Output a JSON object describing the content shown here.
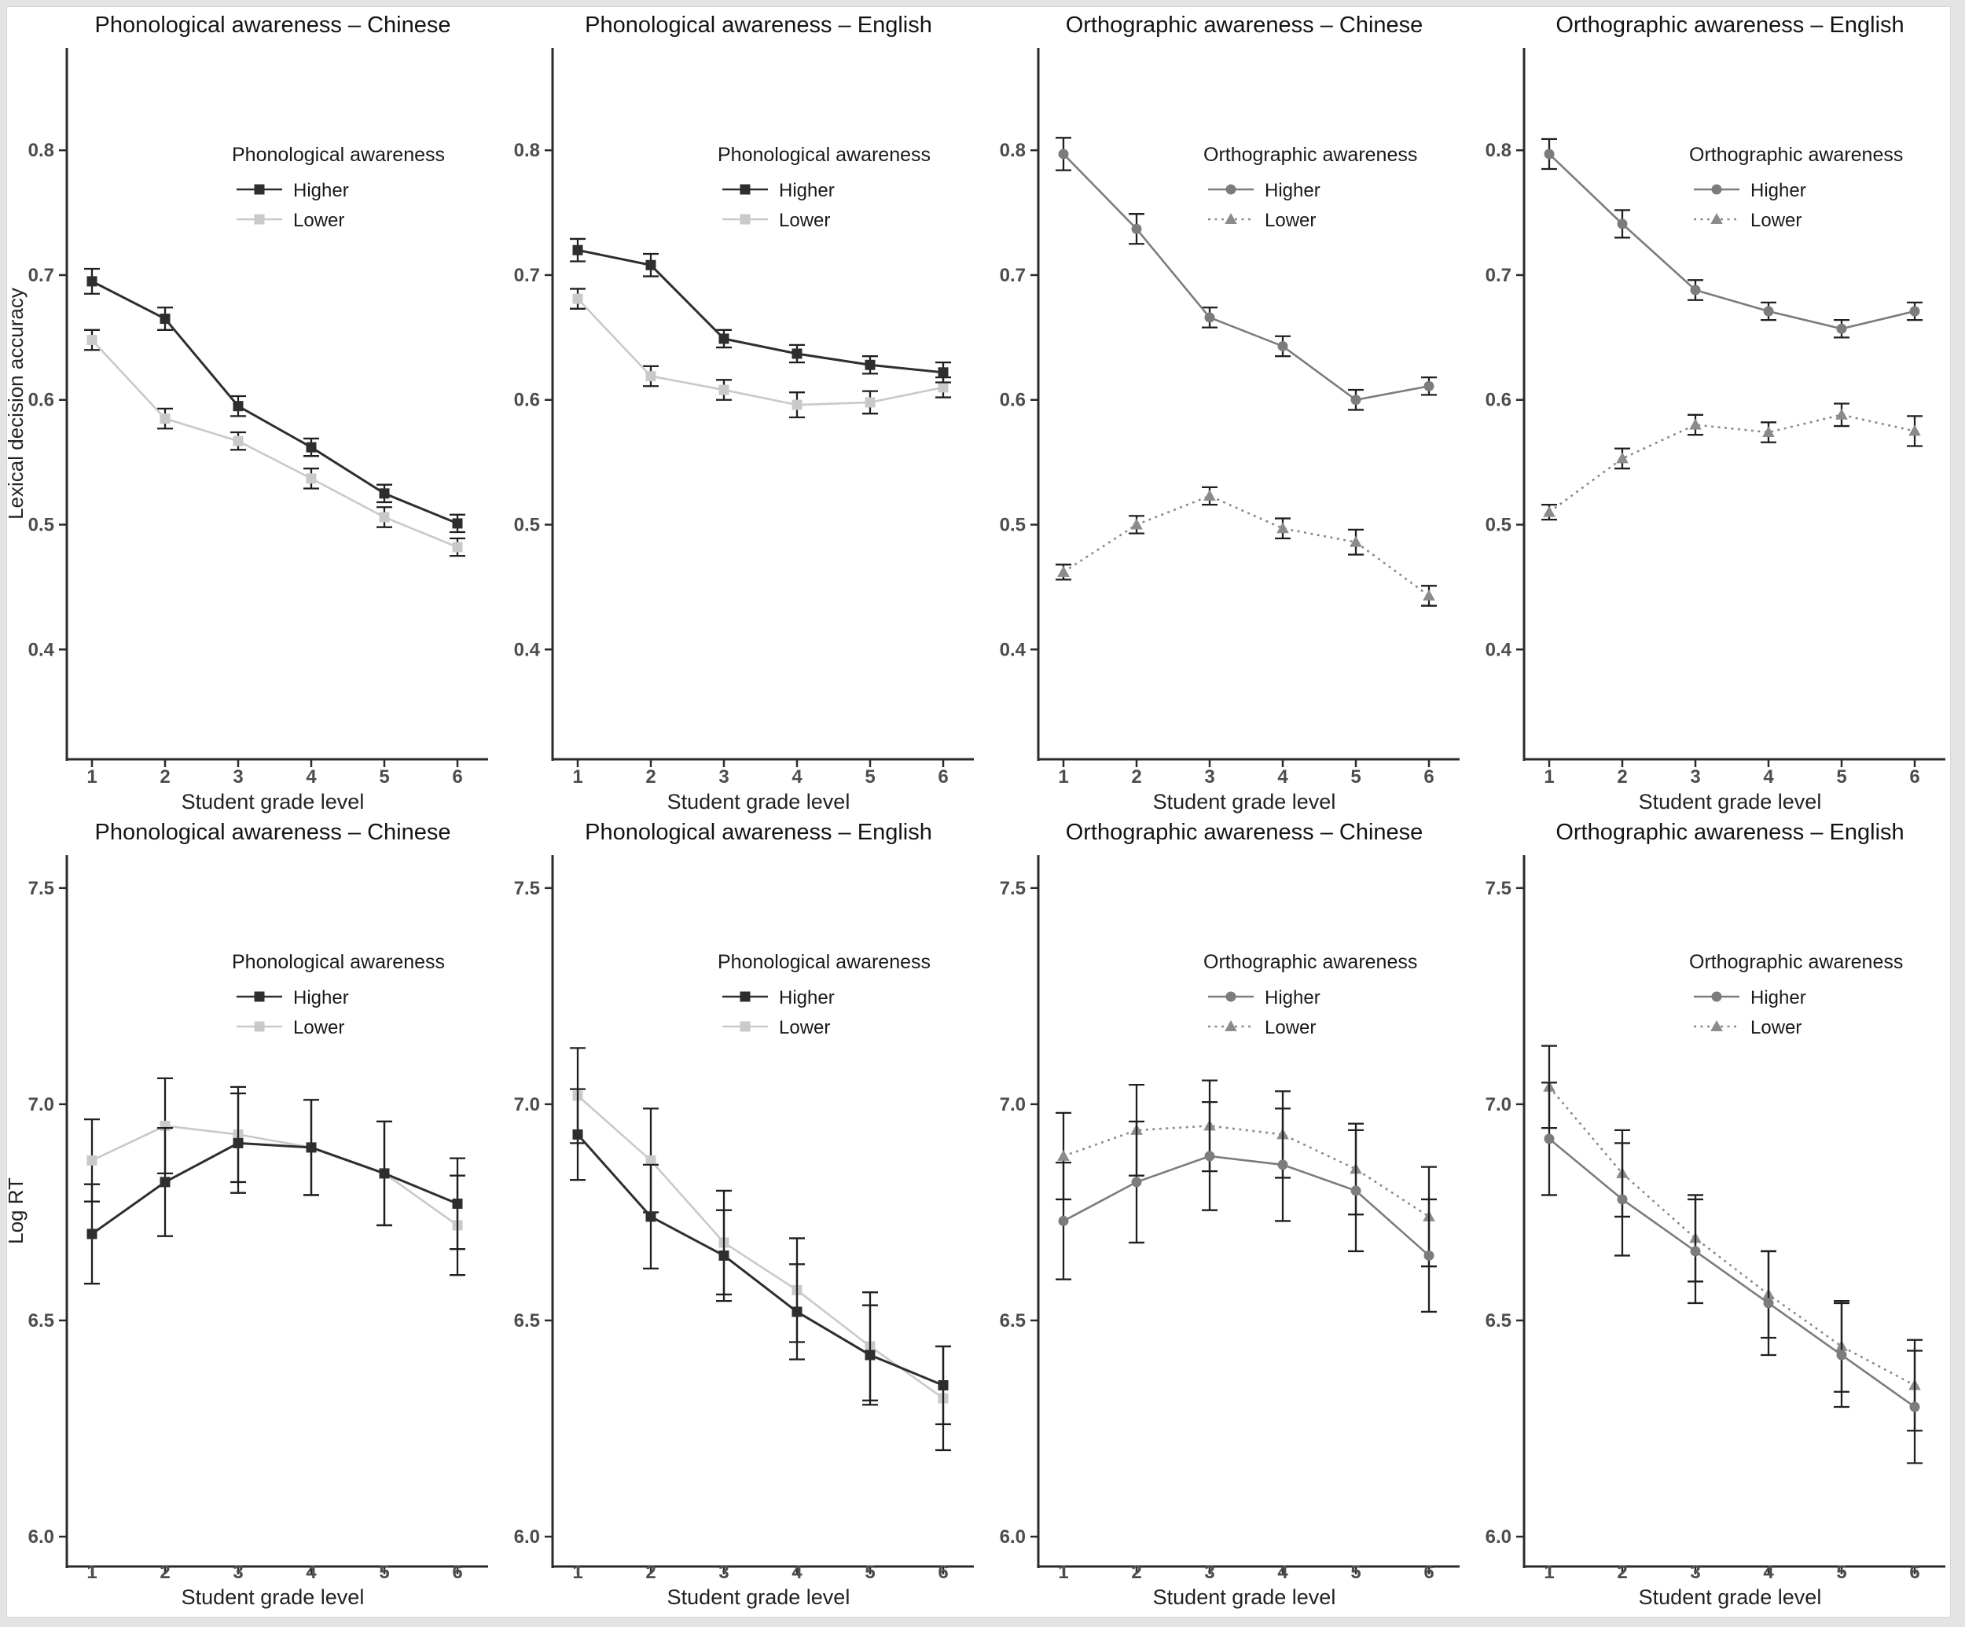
{
  "page": {
    "colors": {
      "page_background": "#e4e4e4",
      "figure_background": "#ffffff",
      "axis": "#2b2b2b",
      "tick_label": "#4d4d4d",
      "title_text": "#141414",
      "error_bar": "#1f1f1f",
      "phonological_higher": "#2e2e2e",
      "phonological_lower": "#c9c9c9",
      "orthographic_higher": "#7c7c7c",
      "orthographic_lower": "#8b8b8b"
    }
  },
  "figure": {
    "x_axis": {
      "label": "Student grade level",
      "tick_labels": [
        "1",
        "2",
        "3",
        "4",
        "5",
        "6"
      ]
    },
    "row_axes": [
      {
        "label": "Lexical decision accuracy",
        "tick_values": [
          0.8,
          0.7,
          0.6,
          0.5,
          0.4
        ],
        "tick_labels": [
          "0.8",
          "0.7",
          "0.6",
          "0.5",
          "0.4"
        ],
        "ylim": [
          0.312,
          0.882
        ]
      },
      {
        "label": "Log RT",
        "tick_values": [
          7.5,
          7.0,
          6.5,
          6.0
        ],
        "tick_labels": [
          "7.5",
          "7.0",
          "6.5",
          "6.0"
        ],
        "ylim": [
          5.931,
          7.576
        ]
      }
    ]
  },
  "chart_data": [
    {
      "type": "line",
      "row": 0,
      "col": 0,
      "title": "Phonological awareness – Chinese",
      "xlabel": "Student grade level",
      "ylabel": "Lexical decision accuracy",
      "x": [
        1,
        2,
        3,
        4,
        5,
        6
      ],
      "legend": {
        "title": "Phonological awareness",
        "position": "upper right"
      },
      "series": [
        {
          "name": "Lower",
          "marker": "square",
          "line_style": "solid",
          "color": "#c9c9c9",
          "values": [
            0.648,
            0.585,
            0.567,
            0.537,
            0.506,
            0.482
          ],
          "errors": [
            0.008,
            0.008,
            0.007,
            0.008,
            0.008,
            0.007
          ]
        },
        {
          "name": "Higher",
          "marker": "square",
          "line_style": "solid",
          "color": "#2e2e2e",
          "values": [
            0.695,
            0.665,
            0.595,
            0.562,
            0.525,
            0.501
          ],
          "errors": [
            0.01,
            0.009,
            0.008,
            0.007,
            0.007,
            0.007
          ]
        }
      ]
    },
    {
      "type": "line",
      "row": 0,
      "col": 1,
      "title": "Phonological awareness – English",
      "xlabel": "Student grade level",
      "ylabel": null,
      "x": [
        1,
        2,
        3,
        4,
        5,
        6
      ],
      "legend": {
        "title": "Phonological awareness",
        "position": "upper right"
      },
      "series": [
        {
          "name": "Lower",
          "marker": "square",
          "line_style": "solid",
          "color": "#c9c9c9",
          "values": [
            0.681,
            0.619,
            0.608,
            0.596,
            0.598,
            0.61
          ],
          "errors": [
            0.008,
            0.008,
            0.008,
            0.01,
            0.009,
            0.008
          ]
        },
        {
          "name": "Higher",
          "marker": "square",
          "line_style": "solid",
          "color": "#2e2e2e",
          "values": [
            0.72,
            0.708,
            0.649,
            0.637,
            0.628,
            0.622
          ],
          "errors": [
            0.009,
            0.009,
            0.007,
            0.007,
            0.007,
            0.008
          ]
        }
      ]
    },
    {
      "type": "line",
      "row": 0,
      "col": 2,
      "title": "Orthographic awareness – Chinese",
      "xlabel": "Student grade level",
      "ylabel": null,
      "x": [
        1,
        2,
        3,
        4,
        5,
        6
      ],
      "legend": {
        "title": "Orthographic awareness",
        "position": "upper right"
      },
      "series": [
        {
          "name": "Lower",
          "marker": "triangle",
          "line_style": "dashed",
          "color": "#8b8b8b",
          "values": [
            0.462,
            0.5,
            0.523,
            0.497,
            0.486,
            0.443
          ],
          "errors": [
            0.006,
            0.007,
            0.007,
            0.008,
            0.01,
            0.008
          ]
        },
        {
          "name": "Higher",
          "marker": "circle",
          "line_style": "solid",
          "color": "#7c7c7c",
          "values": [
            0.797,
            0.737,
            0.666,
            0.643,
            0.6,
            0.611
          ],
          "errors": [
            0.013,
            0.012,
            0.008,
            0.008,
            0.008,
            0.007
          ]
        }
      ]
    },
    {
      "type": "line",
      "row": 0,
      "col": 3,
      "title": "Orthographic awareness – English",
      "xlabel": "Student grade level",
      "ylabel": null,
      "x": [
        1,
        2,
        3,
        4,
        5,
        6
      ],
      "legend": {
        "title": "Orthographic awareness",
        "position": "upper right"
      },
      "series": [
        {
          "name": "Lower",
          "marker": "triangle",
          "line_style": "dashed",
          "color": "#8b8b8b",
          "values": [
            0.51,
            0.553,
            0.58,
            0.574,
            0.588,
            0.575
          ],
          "errors": [
            0.006,
            0.008,
            0.008,
            0.008,
            0.009,
            0.012
          ]
        },
        {
          "name": "Higher",
          "marker": "circle",
          "line_style": "solid",
          "color": "#7c7c7c",
          "values": [
            0.797,
            0.741,
            0.688,
            0.671,
            0.657,
            0.671
          ],
          "errors": [
            0.012,
            0.011,
            0.008,
            0.007,
            0.007,
            0.007
          ]
        }
      ]
    },
    {
      "type": "line",
      "row": 1,
      "col": 0,
      "title": "Phonological awareness – Chinese",
      "xlabel": "Student grade level",
      "ylabel": "Log RT",
      "x": [
        1,
        2,
        3,
        4,
        5,
        6
      ],
      "legend": {
        "title": "Phonological awareness",
        "position": "upper right"
      },
      "series": [
        {
          "name": "Lower",
          "marker": "square",
          "line_style": "solid",
          "color": "#c9c9c9",
          "values": [
            6.87,
            6.95,
            6.93,
            6.9,
            6.84,
            6.72
          ],
          "errors": [
            0.095,
            0.11,
            0.11,
            0.11,
            0.12,
            0.115
          ]
        },
        {
          "name": "Higher",
          "marker": "square",
          "line_style": "solid",
          "color": "#2e2e2e",
          "values": [
            6.7,
            6.82,
            6.91,
            6.9,
            6.84,
            6.77
          ],
          "errors": [
            0.115,
            0.125,
            0.115,
            0.11,
            0.12,
            0.105
          ]
        }
      ]
    },
    {
      "type": "line",
      "row": 1,
      "col": 1,
      "title": "Phonological awareness – English",
      "xlabel": "Student grade level",
      "ylabel": null,
      "x": [
        1,
        2,
        3,
        4,
        5,
        6
      ],
      "legend": {
        "title": "Phonological awareness",
        "position": "upper right"
      },
      "series": [
        {
          "name": "Lower",
          "marker": "square",
          "line_style": "solid",
          "color": "#c9c9c9",
          "values": [
            7.02,
            6.87,
            6.68,
            6.57,
            6.44,
            6.32
          ],
          "errors": [
            0.11,
            0.12,
            0.12,
            0.12,
            0.125,
            0.12
          ]
        },
        {
          "name": "Higher",
          "marker": "square",
          "line_style": "solid",
          "color": "#2e2e2e",
          "values": [
            6.93,
            6.74,
            6.65,
            6.52,
            6.42,
            6.35
          ],
          "errors": [
            0.105,
            0.12,
            0.105,
            0.11,
            0.115,
            0.09
          ]
        }
      ]
    },
    {
      "type": "line",
      "row": 1,
      "col": 2,
      "title": "Orthographic awareness – Chinese",
      "xlabel": "Student grade level",
      "ylabel": null,
      "x": [
        1,
        2,
        3,
        4,
        5,
        6
      ],
      "legend": {
        "title": "Orthographic awareness",
        "position": "upper right"
      },
      "series": [
        {
          "name": "Lower",
          "marker": "triangle",
          "line_style": "dashed",
          "color": "#8b8b8b",
          "values": [
            6.88,
            6.94,
            6.95,
            6.93,
            6.85,
            6.74
          ],
          "errors": [
            0.1,
            0.105,
            0.105,
            0.1,
            0.105,
            0.115
          ]
        },
        {
          "name": "Higher",
          "marker": "circle",
          "line_style": "solid",
          "color": "#7c7c7c",
          "values": [
            6.73,
            6.82,
            6.88,
            6.86,
            6.8,
            6.65
          ],
          "errors": [
            0.135,
            0.14,
            0.125,
            0.13,
            0.14,
            0.13
          ]
        }
      ]
    },
    {
      "type": "line",
      "row": 1,
      "col": 3,
      "title": "Orthographic awareness – English",
      "xlabel": "Student grade level",
      "ylabel": null,
      "x": [
        1,
        2,
        3,
        4,
        5,
        6
      ],
      "legend": {
        "title": "Orthographic awareness",
        "position": "upper right"
      },
      "series": [
        {
          "name": "Lower",
          "marker": "triangle",
          "line_style": "dashed",
          "color": "#8b8b8b",
          "values": [
            7.04,
            6.84,
            6.69,
            6.56,
            6.44,
            6.35
          ],
          "errors": [
            0.095,
            0.1,
            0.1,
            0.1,
            0.105,
            0.105
          ]
        },
        {
          "name": "Higher",
          "marker": "circle",
          "line_style": "solid",
          "color": "#7c7c7c",
          "values": [
            6.92,
            6.78,
            6.66,
            6.54,
            6.42,
            6.3
          ],
          "errors": [
            0.13,
            0.13,
            0.12,
            0.12,
            0.12,
            0.13
          ]
        }
      ]
    }
  ]
}
